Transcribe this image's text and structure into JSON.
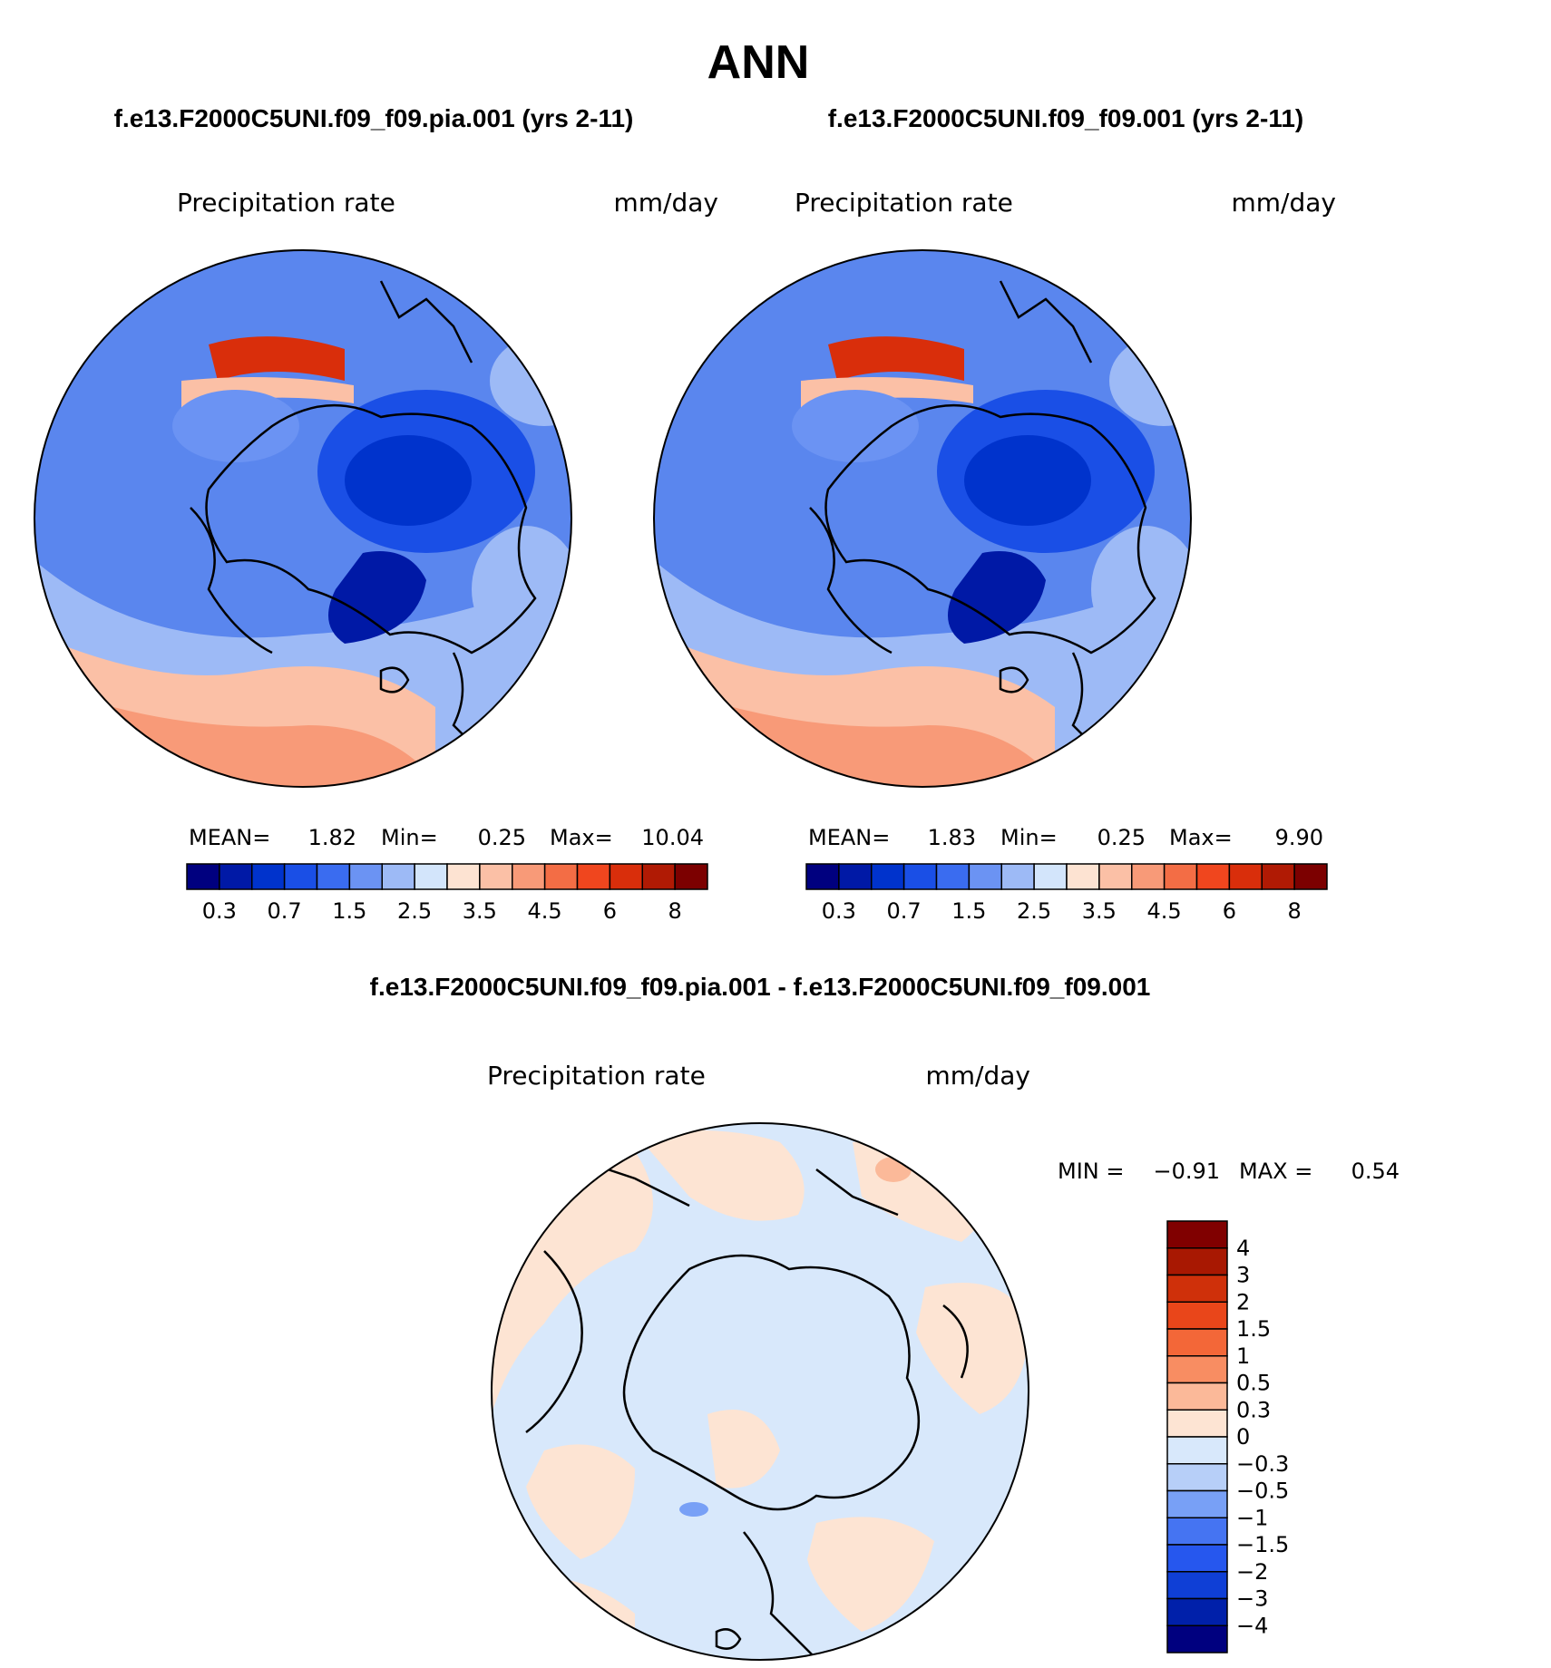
{
  "figure": {
    "title": "ANN"
  },
  "colors": {
    "abs_palette": [
      "#00007f",
      "#0019a6",
      "#0033cc",
      "#1a4fe6",
      "#3a6cf0",
      "#6b93f3",
      "#9dbaf6",
      "#d3e5fb",
      "#fde3d2",
      "#fbc0a6",
      "#f89a78",
      "#f36d45",
      "#f0461e",
      "#d92e0b",
      "#b01a04",
      "#7c0000"
    ],
    "diff_palette": [
      "#00007f",
      "#0020aa",
      "#0f3fd6",
      "#2657ee",
      "#4574f2",
      "#78a0f6",
      "#b7cff8",
      "#d8e8fb",
      "#fde4d3",
      "#fbb999",
      "#f88d62",
      "#f36738",
      "#e9461a",
      "#cf300a",
      "#a81802",
      "#800000"
    ]
  },
  "chart_data": [
    {
      "type": "heatmap",
      "projection": "polar-stereographic-north",
      "case_title": "f.e13.F2000C5UNI.f09_f09.pia.001 (yrs 2-11)",
      "left_label": "Precipitation rate",
      "right_label": "mm/day",
      "stats": {
        "mean_label": "MEAN=",
        "mean": "1.82",
        "min_label": "Min=",
        "min": "0.25",
        "max_label": "Max=",
        "max": "10.04"
      },
      "levels": [
        "0.3",
        "0.5",
        "0.7",
        "1",
        "1.5",
        "2",
        "2.5",
        "3",
        "3.5",
        "4",
        "4.5",
        "5",
        "6",
        "7",
        "8"
      ],
      "tick_labels": [
        "0.3",
        "0.7",
        "1.5",
        "2.5",
        "3.5",
        "4.5",
        "6",
        "8"
      ]
    },
    {
      "type": "heatmap",
      "projection": "polar-stereographic-north",
      "case_title": "f.e13.F2000C5UNI.f09_f09.001 (yrs 2-11)",
      "left_label": "Precipitation rate",
      "right_label": "mm/day",
      "stats": {
        "mean_label": "MEAN=",
        "mean": "1.83",
        "min_label": "Min=",
        "min": "0.25",
        "max_label": "Max=",
        "max": "9.90"
      },
      "levels": [
        "0.3",
        "0.5",
        "0.7",
        "1",
        "1.5",
        "2",
        "2.5",
        "3",
        "3.5",
        "4",
        "4.5",
        "5",
        "6",
        "7",
        "8"
      ],
      "tick_labels": [
        "0.3",
        "0.7",
        "1.5",
        "2.5",
        "3.5",
        "4.5",
        "6",
        "8"
      ]
    },
    {
      "type": "heatmap",
      "projection": "polar-stereographic-north",
      "case_title": "f.e13.F2000C5UNI.f09_f09.pia.001 - f.e13.F2000C5UNI.f09_f09.001",
      "left_label": "Precipitation rate",
      "right_label": "mm/day",
      "stats": {
        "min_label": "MIN =",
        "min": "−0.91",
        "max_label": "MAX =",
        "max": "0.54"
      },
      "levels": [
        "4",
        "3",
        "2",
        "1.5",
        "1",
        "0.5",
        "0.3",
        "0",
        "−0.3",
        "−0.5",
        "−1",
        "−1.5",
        "−2",
        "−3",
        "−4"
      ]
    }
  ]
}
